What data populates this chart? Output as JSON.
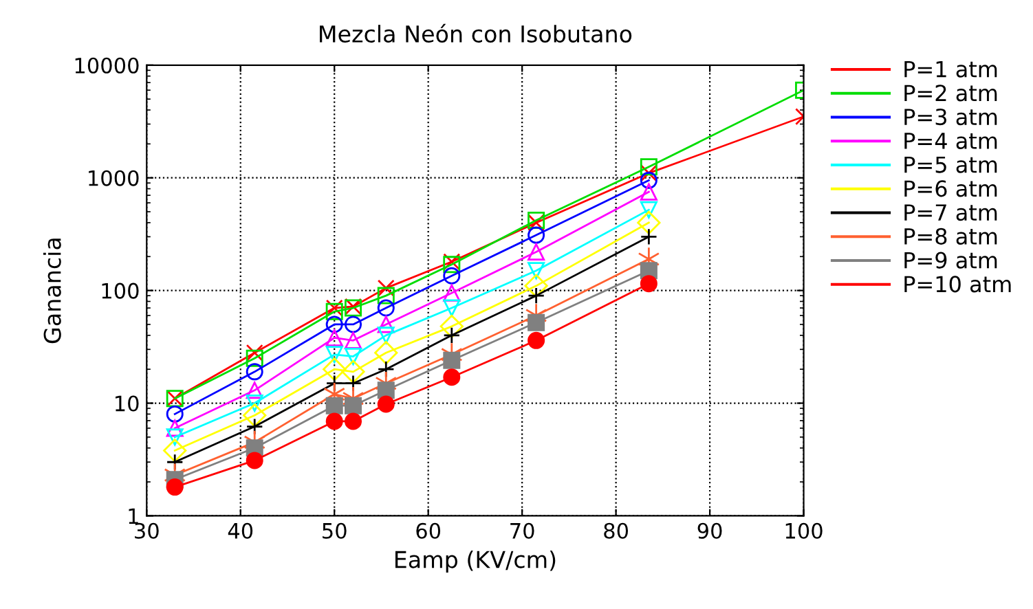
{
  "chart_data": {
    "type": "line",
    "title": "Mezcla Neón con Isobutano",
    "xlabel": "Eamp (KV/cm)",
    "ylabel": "Ganancia",
    "log": "y",
    "grid": true,
    "legend": "right",
    "line_style": "solid",
    "xlim": [
      30,
      100
    ],
    "xticks": [
      30,
      40,
      50,
      60,
      70,
      80,
      90,
      100
    ],
    "ylim": [
      1,
      10000
    ],
    "yticks": [
      1,
      10,
      100,
      1000,
      10000
    ],
    "series": [
      {
        "name": "P=1 atm",
        "color": "#ff0000",
        "marker": "x",
        "x": [
          33,
          41.5,
          50,
          52,
          55.5,
          62.5,
          71.5,
          83.5,
          100
        ],
        "values": [
          11,
          28,
          70,
          72,
          105,
          180,
          400,
          1100,
          3500
        ]
      },
      {
        "name": "P=2 atm",
        "color": "#00dd00",
        "marker": "square",
        "x": [
          33,
          41.5,
          50,
          52,
          55.5,
          62.5,
          71.5,
          83.5,
          100
        ],
        "values": [
          11,
          25,
          65,
          70,
          90,
          170,
          420,
          1250,
          6000
        ]
      },
      {
        "name": "P=3 atm",
        "color": "#0000ff",
        "marker": "circle",
        "x": [
          33,
          41.5,
          50,
          52,
          55.5,
          62.5,
          71.5,
          83.5
        ],
        "values": [
          8,
          19,
          50,
          50,
          70,
          135,
          310,
          950
        ]
      },
      {
        "name": "P=4 atm",
        "color": "#ff00ff",
        "marker": "triangle",
        "x": [
          33,
          41.5,
          50,
          52,
          55.5,
          62.5,
          71.5,
          83.5
        ],
        "values": [
          6,
          13,
          38,
          36,
          50,
          95,
          220,
          750
        ]
      },
      {
        "name": "P=5 atm",
        "color": "#00ffff",
        "marker": "triangle_down",
        "x": [
          33,
          41.5,
          50,
          52,
          55.5,
          62.5,
          71.5,
          83.5
        ],
        "values": [
          5,
          10,
          27,
          26,
          40,
          70,
          150,
          520
        ]
      },
      {
        "name": "P=6 atm",
        "color": "#ffff00",
        "marker": "diamond",
        "x": [
          33,
          41.5,
          50,
          52,
          55.5,
          62.5,
          71.5,
          83.5
        ],
        "values": [
          3.8,
          7.8,
          20,
          19,
          28,
          48,
          110,
          400
        ]
      },
      {
        "name": "P=7 atm",
        "color": "#000000",
        "marker": "plus",
        "x": [
          33,
          41.5,
          50,
          52,
          55.5,
          62.5,
          71.5,
          83.5
        ],
        "values": [
          3,
          6.2,
          15,
          15,
          20,
          40,
          90,
          300
        ]
      },
      {
        "name": "P=8 atm",
        "color": "#ff6030",
        "marker": "cross",
        "x": [
          33,
          41.5,
          50,
          52,
          55.5,
          62.5,
          71.5,
          83.5
        ],
        "values": [
          2.3,
          4.5,
          12,
          11,
          15,
          27,
          60,
          190
        ]
      },
      {
        "name": "P=9 atm",
        "color": "#808080",
        "marker": "square_filled",
        "x": [
          33,
          41.5,
          50,
          52,
          55.5,
          62.5,
          71.5,
          83.5
        ],
        "values": [
          2.1,
          4,
          9.5,
          9.5,
          13,
          24,
          52,
          150
        ]
      },
      {
        "name": "P=10 atm",
        "color": "#ff0000",
        "marker": "circle_filled",
        "x": [
          33,
          41.5,
          50,
          52,
          55.5,
          62.5,
          71.5,
          83.5
        ],
        "values": [
          1.8,
          3.1,
          6.9,
          6.9,
          9.8,
          17,
          36,
          115
        ]
      }
    ]
  }
}
